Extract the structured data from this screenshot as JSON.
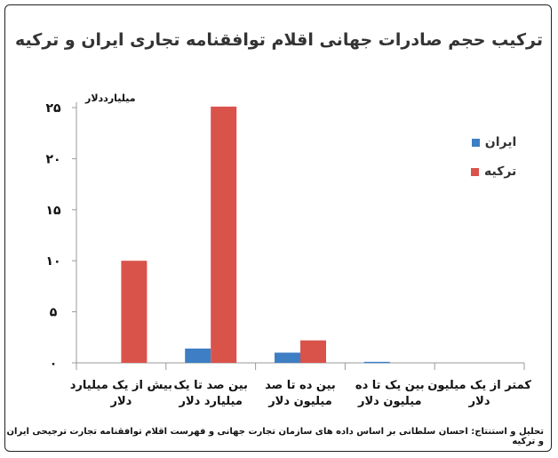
{
  "chart_data": {
    "type": "bar",
    "title": "ترکیب حجم صادرات جهانی اقلام توافقنامه تجاری ایران و ترکیه",
    "ylabel": "میلیارددلار",
    "ylim": [
      0,
      25
    ],
    "yticks": [
      "۰",
      "۵",
      "۱۰",
      "۱۵",
      "۲۰",
      "۲۵"
    ],
    "categories": [
      [
        "بیش از یک میلیارد",
        "دلار"
      ],
      [
        "بین صد تا یک",
        "میلیارد دلار"
      ],
      [
        "بین ده تا صد",
        "میلیون دلار"
      ],
      [
        "بین یک تا ده",
        "میلیون دلار"
      ],
      [
        "کمتر از یک میلیون",
        "دلار"
      ]
    ],
    "series": [
      {
        "name": "ایران",
        "color": "#3d7ec4",
        "values": [
          0,
          1.4,
          1.0,
          0.1,
          0
        ]
      },
      {
        "name": "ترکیه",
        "color": "#d9534b",
        "values": [
          10,
          25.1,
          2.2,
          0,
          0
        ]
      }
    ],
    "grid": false,
    "legend_position": "right"
  },
  "footer": {
    "credit": "تحلیل و استنتاج: احسان سلطانی بر اساس داده های سازمان تجارت جهانی و فهرست اقلام توافقنامه تجارت ترجیحی ایران و ترکیه"
  }
}
